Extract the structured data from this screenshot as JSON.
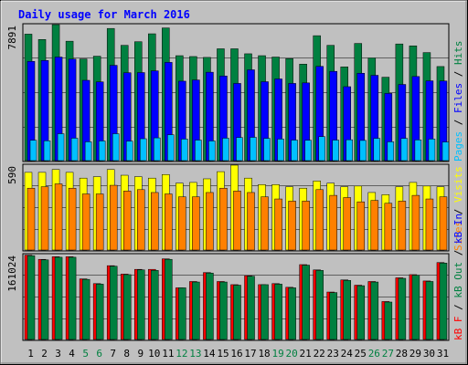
{
  "chart_data": {
    "type": "bar",
    "title": "Daily usage for March 2016",
    "days": [
      "1",
      "2",
      "3",
      "4",
      "5",
      "6",
      "7",
      "8",
      "9",
      "10",
      "11",
      "12",
      "13",
      "14",
      "15",
      "16",
      "17",
      "18",
      "19",
      "20",
      "21",
      "22",
      "23",
      "24",
      "25",
      "26",
      "27",
      "28",
      "29",
      "30",
      "31"
    ],
    "weekend_days": [
      5,
      6,
      12,
      13,
      19,
      20,
      26,
      27
    ],
    "colors": {
      "background": "#c0c0c0",
      "border": "#000000",
      "title": "#0000ff",
      "pages": "#00c0ff",
      "files": "#0000ff",
      "hits": "#008040",
      "visits": "#ffff00",
      "sites": "#ff8000",
      "kb_in": "#008040",
      "kb_out": "#ff0000",
      "weekend_label": "#008040",
      "weekday_label": "#000000"
    },
    "panels": [
      {
        "id": "pages-files-hits",
        "max_label": "7891",
        "ymax": 7891,
        "legend": [
          {
            "text": "Pages",
            "color": "#00c0ff"
          },
          {
            "text": "/",
            "color": "#000000"
          },
          {
            "text": "Files",
            "color": "#0000ff"
          },
          {
            "text": "/",
            "color": "#000000"
          },
          {
            "text": "Hits",
            "color": "#008040"
          }
        ],
        "series": [
          {
            "name": "Hits",
            "color": "#008040",
            "values": [
              7340,
              7030,
              7890,
              6930,
              5900,
              6060,
              7670,
              6690,
              6900,
              7360,
              7700,
              6090,
              6040,
              5990,
              6490,
              6490,
              6200,
              6090,
              6010,
              5920,
              5600,
              7250,
              6690,
              5440,
              6800,
              5960,
              4840,
              6770,
              6660,
              6270,
              5460
            ]
          },
          {
            "name": "Files",
            "color": "#0000ff",
            "values": [
              5760,
              5810,
              6010,
              5890,
              4660,
              4570,
              5530,
              5100,
              5110,
              5210,
              5700,
              4610,
              4680,
              5130,
              4910,
              4480,
              5270,
              4580,
              4740,
              4480,
              4510,
              5470,
              5180,
              4290,
              5070,
              4950,
              3900,
              4420,
              4880,
              4630,
              4620
            ]
          },
          {
            "name": "Pages",
            "color": "#00c0ff",
            "values": [
              1180,
              1150,
              1560,
              1300,
              1090,
              1140,
              1560,
              1130,
              1270,
              1320,
              1500,
              1250,
              1190,
              1140,
              1300,
              1340,
              1350,
              1290,
              1250,
              1190,
              1180,
              1390,
              1190,
              1210,
              1170,
              1290,
              1090,
              1290,
              1200,
              1250,
              1080
            ]
          }
        ]
      },
      {
        "id": "visits-sites",
        "max_label": "590",
        "ymax": 590,
        "legend": [
          {
            "text": "Sites",
            "color": "#ff8000"
          },
          {
            "text": "/",
            "color": "#000000"
          },
          {
            "text": "Visits",
            "color": "#ffff00"
          }
        ],
        "series": [
          {
            "name": "Visits",
            "color": "#ffff00",
            "values": [
              540,
              540,
              560,
              540,
              500,
              510,
              560,
              520,
              510,
              500,
              525,
              465,
              470,
              495,
              545,
              590,
              500,
              455,
              455,
              440,
              430,
              480,
              465,
              440,
              445,
              400,
              385,
              440,
              470,
              445,
              440
            ]
          },
          {
            "name": "Sites",
            "color": "#ff8000",
            "values": [
              430,
              440,
              460,
              430,
              390,
              390,
              450,
              410,
              420,
              400,
              390,
              370,
              370,
              400,
              430,
              410,
              400,
              370,
              355,
              340,
              340,
              420,
              380,
              365,
              335,
              345,
              325,
              340,
              380,
              355,
              370
            ]
          }
        ]
      },
      {
        "id": "kb-in-out",
        "max_label": "161024",
        "ymax": 161024,
        "legend": [
          {
            "text": "kB F",
            "color": "#ff0000"
          },
          {
            "text": "/",
            "color": "#000000"
          },
          {
            "text": "kB Out",
            "color": "#008040"
          },
          {
            "text": "/",
            "color": "#000000"
          },
          {
            "text": "kB In",
            "color": "#0000ff"
          }
        ],
        "series": [
          {
            "name": "kB F",
            "color": "#ff0000",
            "values": [
              160000,
              152000,
              157000,
              157000,
              115000,
              106000,
              140000,
              124000,
              133000,
              133000,
              153000,
              98000,
              110000,
              127000,
              110000,
              104000,
              121000,
              104000,
              106000,
              99000,
              142000,
              132000,
              90000,
              113000,
              103000,
              110000,
              72000,
              117000,
              123000,
              111000,
              146000
            ]
          },
          {
            "name": "kB Out",
            "color": "#008040",
            "values": [
              159000,
              151000,
              156000,
              156000,
              114000,
              105000,
              139000,
              123000,
              132000,
              131000,
              152000,
              98000,
              109000,
              126000,
              109000,
              103000,
              120000,
              104000,
              105000,
              98000,
              141000,
              131000,
              89000,
              112000,
              102000,
              109000,
              71000,
              116000,
              122000,
              110000,
              145000
            ]
          }
        ]
      }
    ]
  }
}
